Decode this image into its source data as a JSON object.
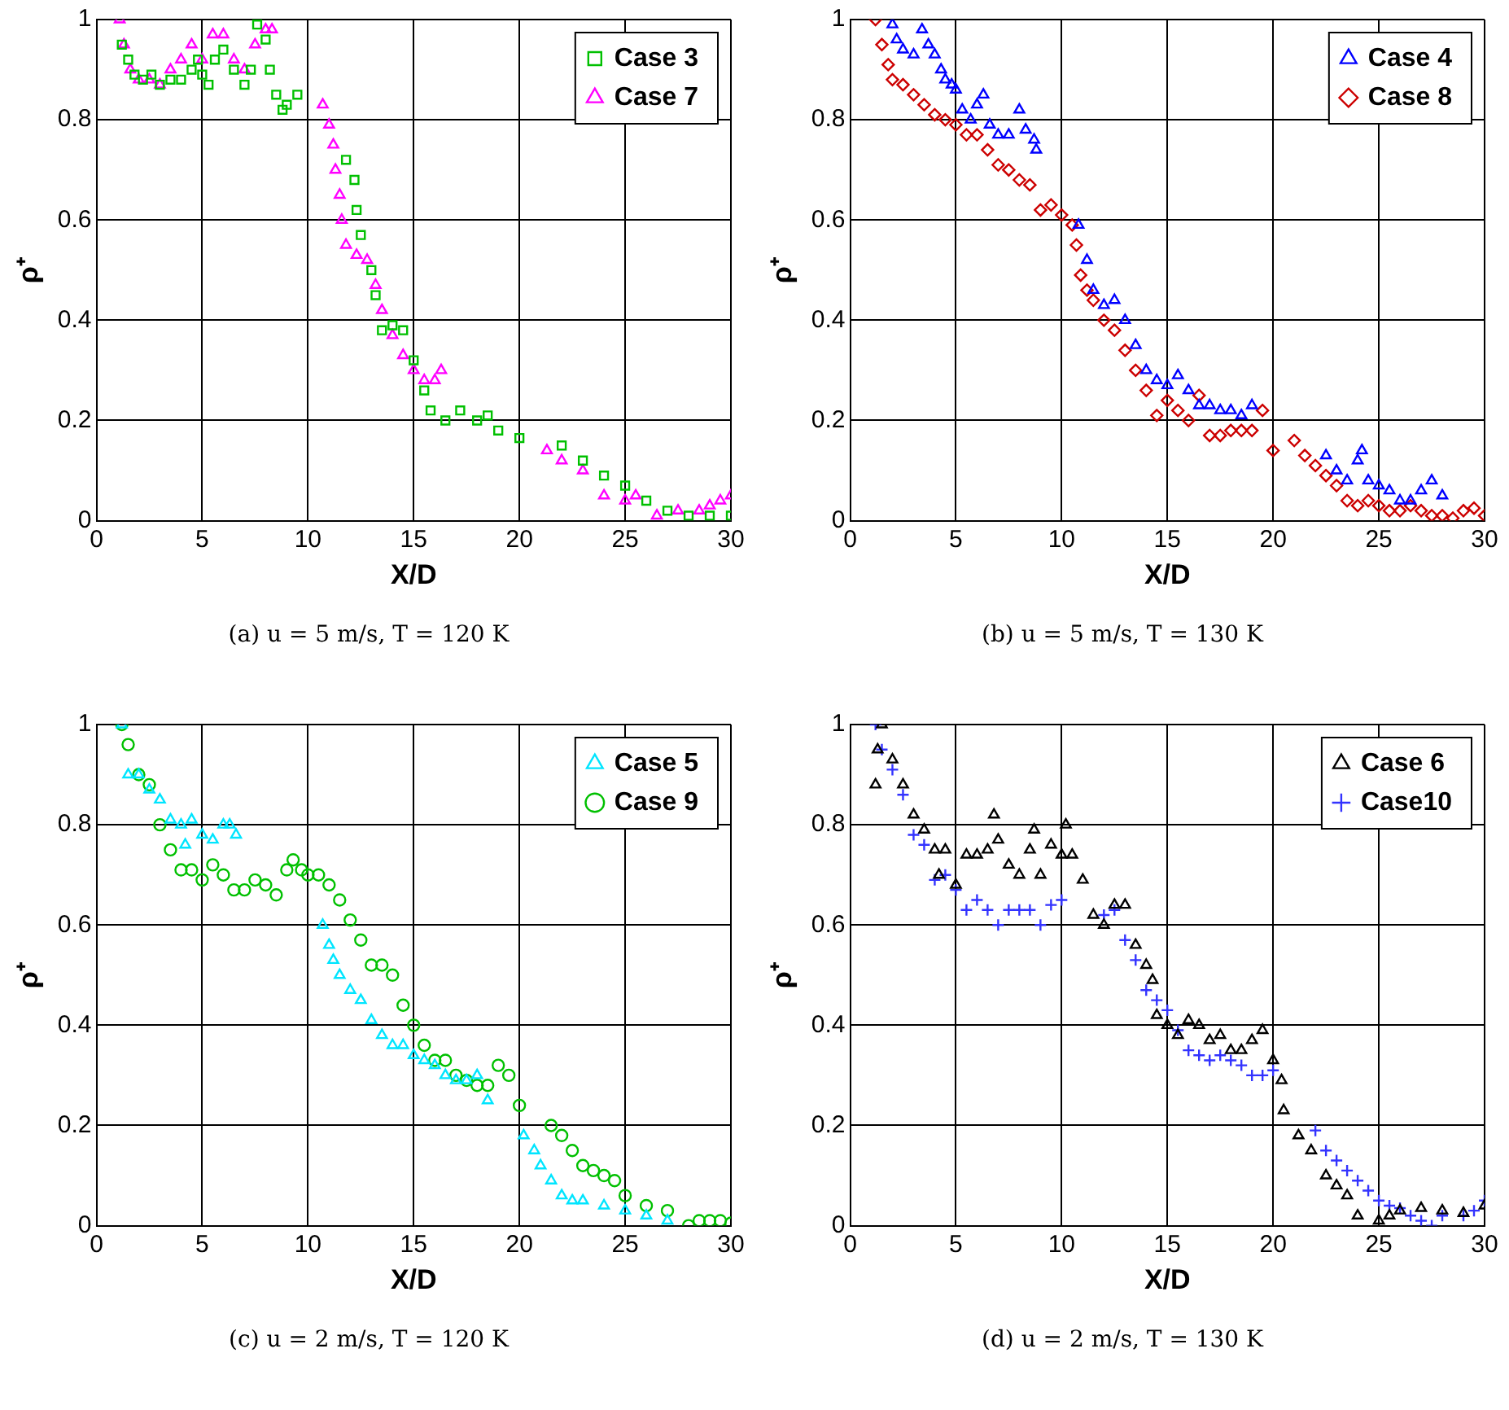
{
  "chart_data": [
    {
      "type": "scatter",
      "title": "(a) u = 5 m/s, T = 120 K",
      "xlabel": "X/D",
      "ylabel": "ρ⁺",
      "xlim": [
        0,
        30
      ],
      "xticks": [
        0,
        5,
        10,
        15,
        20,
        25,
        30
      ],
      "ylim": [
        0,
        1
      ],
      "yticks": [
        0,
        0.2,
        0.4,
        0.6,
        0.8,
        1
      ],
      "grid": true,
      "legend": "top right",
      "series": [
        {
          "name": "Case 3",
          "color": "#00c000",
          "marker": "square",
          "x": [
            1.2,
            1.5,
            1.8,
            2.2,
            2.6,
            3,
            3.5,
            4,
            4.5,
            4.8,
            5,
            5.3,
            5.6,
            6,
            6.5,
            7,
            7.3,
            7.6,
            8,
            8.2,
            8.5,
            8.8,
            9,
            9.5,
            11.8,
            12.2,
            12.3,
            12.5,
            13,
            13.2,
            13.5,
            14,
            14.5,
            15,
            15.5,
            15.8,
            16.5,
            17.2,
            18,
            18.5,
            19,
            20,
            22,
            23,
            24,
            25,
            26,
            27,
            28,
            29,
            30
          ],
          "values": [
            0.95,
            0.92,
            0.89,
            0.88,
            0.89,
            0.87,
            0.88,
            0.88,
            0.9,
            0.92,
            0.89,
            0.87,
            0.92,
            0.94,
            0.9,
            0.87,
            0.9,
            0.99,
            0.96,
            0.9,
            0.85,
            0.82,
            0.83,
            0.85,
            0.72,
            0.68,
            0.62,
            0.57,
            0.5,
            0.45,
            0.38,
            0.39,
            0.38,
            0.32,
            0.26,
            0.22,
            0.2,
            0.22,
            0.2,
            0.21,
            0.18,
            0.165,
            0.15,
            0.12,
            0.09,
            0.07,
            0.04,
            0.02,
            0.01,
            0.01,
            0.01
          ]
        },
        {
          "name": "Case 7",
          "color": "#ff00ff",
          "marker": "triangle",
          "x": [
            1.1,
            1.3,
            1.6,
            2,
            2.5,
            3,
            3.5,
            4,
            4.5,
            5,
            5.5,
            6,
            6.5,
            7,
            7.5,
            8,
            8.3,
            10.7,
            11,
            11.2,
            11.3,
            11.5,
            11.6,
            11.8,
            12.3,
            12.8,
            13.2,
            13.5,
            14,
            14.5,
            15,
            15.5,
            16,
            16.3,
            21.3,
            22,
            23,
            24,
            25,
            25.5,
            26.5,
            27.5,
            28.5,
            29,
            29.5,
            30
          ],
          "values": [
            1.0,
            0.95,
            0.9,
            0.88,
            0.88,
            0.87,
            0.9,
            0.92,
            0.95,
            0.92,
            0.97,
            0.97,
            0.92,
            0.9,
            0.95,
            0.98,
            0.98,
            0.83,
            0.79,
            0.75,
            0.7,
            0.65,
            0.6,
            0.55,
            0.53,
            0.52,
            0.47,
            0.42,
            0.37,
            0.33,
            0.3,
            0.28,
            0.28,
            0.3,
            0.14,
            0.12,
            0.1,
            0.05,
            0.04,
            0.05,
            0.01,
            0.02,
            0.02,
            0.03,
            0.04,
            0.05
          ]
        }
      ]
    },
    {
      "type": "scatter",
      "title": "(b) u = 5 m/s, T = 130 K",
      "xlabel": "X/D",
      "ylabel": "ρ⁺",
      "xlim": [
        0,
        30
      ],
      "xticks": [
        0,
        5,
        10,
        15,
        20,
        25,
        30
      ],
      "ylim": [
        0,
        1
      ],
      "yticks": [
        0,
        0.2,
        0.4,
        0.6,
        0.8,
        1
      ],
      "grid": true,
      "legend": "top right",
      "series": [
        {
          "name": "Case 4",
          "color": "#0000ff",
          "marker": "triangle",
          "x": [
            2,
            2.2,
            2.5,
            3,
            3.4,
            3.7,
            4,
            4.3,
            4.5,
            4.8,
            5,
            5.3,
            5.7,
            6,
            6.3,
            6.6,
            7,
            7.5,
            8,
            8.3,
            8.7,
            8.8,
            10.8,
            11.2,
            11.5,
            12,
            12.5,
            13,
            13.5,
            14,
            14.5,
            15,
            15.5,
            16,
            16.5,
            17,
            17.5,
            18,
            18.5,
            19,
            22.5,
            23,
            23.5,
            24,
            24.2,
            24.5,
            25,
            25.5,
            26,
            26.5,
            27,
            27.5,
            28
          ],
          "values": [
            0.99,
            0.96,
            0.94,
            0.93,
            0.98,
            0.95,
            0.93,
            0.9,
            0.88,
            0.87,
            0.86,
            0.82,
            0.8,
            0.83,
            0.85,
            0.79,
            0.77,
            0.77,
            0.82,
            0.78,
            0.76,
            0.74,
            0.59,
            0.52,
            0.46,
            0.43,
            0.44,
            0.4,
            0.35,
            0.3,
            0.28,
            0.27,
            0.29,
            0.26,
            0.23,
            0.23,
            0.22,
            0.22,
            0.21,
            0.23,
            0.13,
            0.1,
            0.08,
            0.12,
            0.14,
            0.08,
            0.07,
            0.06,
            0.04,
            0.04,
            0.06,
            0.08,
            0.05
          ]
        },
        {
          "name": "Case 8",
          "color": "#cc0000",
          "marker": "diamond",
          "x": [
            1.2,
            1.5,
            1.8,
            2,
            2.5,
            3,
            3.5,
            4,
            4.5,
            5,
            5.5,
            6,
            6.5,
            7,
            7.5,
            8,
            8.5,
            9,
            9.5,
            10,
            10.5,
            10.7,
            10.9,
            11.2,
            11.5,
            12,
            12.5,
            13,
            13.5,
            14,
            14.5,
            15,
            15.5,
            16,
            16.5,
            17,
            17.5,
            18,
            18.5,
            19,
            19.5,
            20,
            21,
            21.5,
            22,
            22.5,
            23,
            23.5,
            24,
            24.5,
            25,
            25.5,
            26,
            26.5,
            27,
            27.5,
            28,
            28.5,
            29,
            29.5,
            30
          ],
          "values": [
            1.0,
            0.95,
            0.91,
            0.88,
            0.87,
            0.85,
            0.83,
            0.81,
            0.8,
            0.79,
            0.77,
            0.77,
            0.74,
            0.71,
            0.7,
            0.68,
            0.67,
            0.62,
            0.63,
            0.61,
            0.59,
            0.55,
            0.49,
            0.46,
            0.44,
            0.4,
            0.38,
            0.34,
            0.3,
            0.26,
            0.21,
            0.24,
            0.22,
            0.2,
            0.25,
            0.17,
            0.17,
            0.18,
            0.18,
            0.18,
            0.22,
            0.14,
            0.16,
            0.13,
            0.11,
            0.09,
            0.07,
            0.04,
            0.03,
            0.04,
            0.03,
            0.02,
            0.02,
            0.03,
            0.02,
            0.01,
            0.01,
            0.005,
            0.02,
            0.025,
            0.01
          ]
        }
      ]
    },
    {
      "type": "scatter",
      "title": "(c) u = 2 m/s, T = 120 K",
      "xlabel": "X/D",
      "ylabel": "ρ⁺",
      "xlim": [
        0,
        30
      ],
      "xticks": [
        0,
        5,
        10,
        15,
        20,
        25,
        30
      ],
      "ylim": [
        0,
        1
      ],
      "yticks": [
        0,
        0.2,
        0.4,
        0.6,
        0.8,
        1
      ],
      "grid": true,
      "legend": "top right",
      "series": [
        {
          "name": "Case 5",
          "color": "#00e5ff",
          "marker": "triangle",
          "x": [
            1.2,
            1.5,
            2,
            2.5,
            3,
            3.5,
            4,
            4.2,
            4.5,
            5,
            5.5,
            6,
            6.3,
            6.6,
            10.7,
            11,
            11.2,
            11.5,
            12,
            12.5,
            13,
            13.5,
            14,
            14.5,
            15,
            15.5,
            16,
            16.5,
            17,
            17.5,
            18,
            18.5,
            20.2,
            20.7,
            21,
            21.5,
            22,
            22.5,
            23,
            24,
            25,
            26,
            27
          ],
          "values": [
            1.0,
            0.9,
            0.9,
            0.87,
            0.85,
            0.81,
            0.8,
            0.76,
            0.81,
            0.78,
            0.77,
            0.8,
            0.8,
            0.78,
            0.6,
            0.56,
            0.53,
            0.5,
            0.47,
            0.45,
            0.41,
            0.38,
            0.36,
            0.36,
            0.34,
            0.33,
            0.32,
            0.3,
            0.29,
            0.29,
            0.3,
            0.25,
            0.18,
            0.15,
            0.12,
            0.09,
            0.06,
            0.05,
            0.05,
            0.04,
            0.03,
            0.02,
            0.01
          ]
        },
        {
          "name": "Case 9",
          "color": "#00c000",
          "marker": "circle",
          "x": [
            1.2,
            1.5,
            2,
            2.5,
            3,
            3.5,
            4,
            4.5,
            5,
            5.5,
            6,
            6.5,
            7,
            7.5,
            8,
            8.5,
            9,
            9.3,
            9.7,
            10,
            10.5,
            11,
            11.5,
            12,
            12.5,
            13,
            13.5,
            14,
            14.5,
            15,
            15.5,
            16,
            16.5,
            17,
            17.5,
            18,
            18.5,
            19,
            19.5,
            20,
            21.5,
            22,
            22.5,
            23,
            23.5,
            24,
            24.5,
            25,
            26,
            27,
            28,
            28.5,
            29,
            29.5,
            30
          ],
          "values": [
            1.0,
            0.96,
            0.9,
            0.88,
            0.8,
            0.75,
            0.71,
            0.71,
            0.69,
            0.72,
            0.7,
            0.67,
            0.67,
            0.69,
            0.68,
            0.66,
            0.71,
            0.73,
            0.71,
            0.7,
            0.7,
            0.68,
            0.65,
            0.61,
            0.57,
            0.52,
            0.52,
            0.5,
            0.44,
            0.4,
            0.36,
            0.33,
            0.33,
            0.3,
            0.29,
            0.28,
            0.28,
            0.32,
            0.3,
            0.24,
            0.2,
            0.18,
            0.15,
            0.12,
            0.11,
            0.1,
            0.09,
            0.06,
            0.04,
            0.03,
            0.0,
            0.01,
            0.01,
            0.01,
            0.005
          ]
        }
      ]
    },
    {
      "type": "scatter",
      "title": "(d) u = 2 m/s, T = 130 K",
      "xlabel": "X/D",
      "ylabel": "ρ⁺",
      "xlim": [
        0,
        30
      ],
      "xticks": [
        0,
        5,
        10,
        15,
        20,
        25,
        30
      ],
      "ylim": [
        0,
        1
      ],
      "yticks": [
        0,
        0.2,
        0.4,
        0.6,
        0.8,
        1
      ],
      "grid": true,
      "legend": "top right",
      "series": [
        {
          "name": "Case 6",
          "color": "#000000",
          "marker": "triangle",
          "x": [
            1.2,
            1.3,
            1.5,
            2,
            2.5,
            3,
            3.5,
            4,
            4.2,
            4.5,
            5,
            5.5,
            6,
            6.5,
            6.8,
            7,
            7.5,
            8,
            8.5,
            8.7,
            9,
            9.5,
            10,
            10.2,
            10.5,
            11,
            11.5,
            12,
            12.5,
            13,
            13.5,
            14,
            14.3,
            14.5,
            15,
            15.5,
            16,
            16.5,
            17,
            17.5,
            18,
            18.5,
            19,
            19.5,
            20,
            20.4,
            20.5,
            21.2,
            21.8,
            22.5,
            23,
            23.5,
            24,
            25,
            25.5,
            26,
            27,
            28,
            29,
            30
          ],
          "values": [
            0.88,
            0.95,
            1.0,
            0.93,
            0.88,
            0.82,
            0.79,
            0.75,
            0.7,
            0.75,
            0.68,
            0.74,
            0.74,
            0.75,
            0.82,
            0.77,
            0.72,
            0.7,
            0.75,
            0.79,
            0.7,
            0.76,
            0.74,
            0.8,
            0.74,
            0.69,
            0.62,
            0.6,
            0.64,
            0.64,
            0.56,
            0.52,
            0.49,
            0.42,
            0.4,
            0.38,
            0.41,
            0.4,
            0.37,
            0.38,
            0.35,
            0.35,
            0.37,
            0.39,
            0.33,
            0.29,
            0.23,
            0.18,
            0.15,
            0.1,
            0.08,
            0.06,
            0.02,
            0.01,
            0.02,
            0.03,
            0.035,
            0.03,
            0.025,
            0.04
          ]
        },
        {
          "name": "Case10",
          "color": "#3333ff",
          "marker": "cross",
          "x": [
            1.2,
            1.5,
            2,
            2.5,
            3,
            3.5,
            4,
            4.5,
            5,
            5.5,
            6,
            6.5,
            7,
            7.5,
            8,
            8.5,
            9,
            9.5,
            10,
            12,
            12.5,
            13,
            13.5,
            14,
            14.5,
            15,
            15.5,
            16,
            16.5,
            17,
            17.5,
            18,
            18.5,
            19,
            19.5,
            20,
            22,
            22.5,
            23,
            23.5,
            24,
            24.5,
            25,
            25.5,
            26,
            26.5,
            27,
            27.5,
            28,
            29,
            29.5,
            30
          ],
          "values": [
            1.0,
            0.95,
            0.91,
            0.86,
            0.78,
            0.76,
            0.69,
            0.7,
            0.67,
            0.63,
            0.65,
            0.63,
            0.6,
            0.63,
            0.63,
            0.63,
            0.6,
            0.64,
            0.65,
            0.62,
            0.63,
            0.57,
            0.53,
            0.47,
            0.45,
            0.43,
            0.39,
            0.35,
            0.34,
            0.33,
            0.34,
            0.33,
            0.32,
            0.3,
            0.3,
            0.31,
            0.19,
            0.15,
            0.13,
            0.11,
            0.09,
            0.07,
            0.05,
            0.04,
            0.035,
            0.02,
            0.01,
            0.0,
            0.02,
            0.02,
            0.03,
            0.05
          ]
        }
      ]
    }
  ]
}
